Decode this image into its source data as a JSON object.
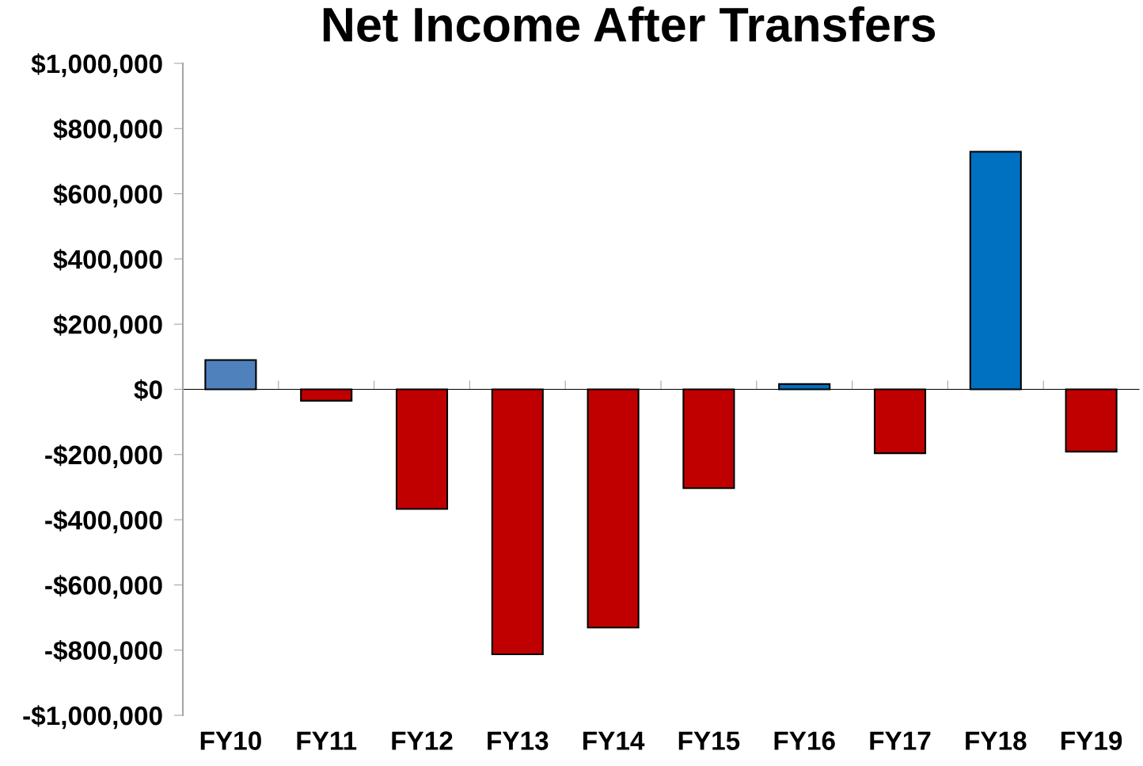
{
  "chart_data": {
    "type": "bar",
    "title": "Net Income After Transfers",
    "categories": [
      "FY10",
      "FY11",
      "FY12",
      "FY13",
      "FY14",
      "FY15",
      "FY16",
      "FY17",
      "FY18",
      "FY19"
    ],
    "values": [
      90000,
      -35000,
      -367000,
      -813000,
      -731000,
      -303000,
      16000,
      -196000,
      729000,
      -191000
    ],
    "colors": [
      "#4f81bd",
      "#c00000",
      "#c00000",
      "#c00000",
      "#c00000",
      "#c00000",
      "#0070c0",
      "#c00000",
      "#0070c0",
      "#c00000"
    ],
    "ylim": [
      -1000000,
      1000000
    ],
    "yticks": [
      {
        "value": -1000000,
        "label": "-$1,000,000"
      },
      {
        "value": -800000,
        "label": "-$800,000"
      },
      {
        "value": -600000,
        "label": "-$600,000"
      },
      {
        "value": -400000,
        "label": "-$400,000"
      },
      {
        "value": -200000,
        "label": "-$200,000"
      },
      {
        "value": 0,
        "label": "$0"
      },
      {
        "value": 200000,
        "label": "$200,000"
      },
      {
        "value": 400000,
        "label": "$400,000"
      },
      {
        "value": 600000,
        "label": "$600,000"
      },
      {
        "value": 800000,
        "label": "$800,000"
      },
      {
        "value": 1000000,
        "label": "$1,000,000"
      }
    ],
    "legend": false
  }
}
